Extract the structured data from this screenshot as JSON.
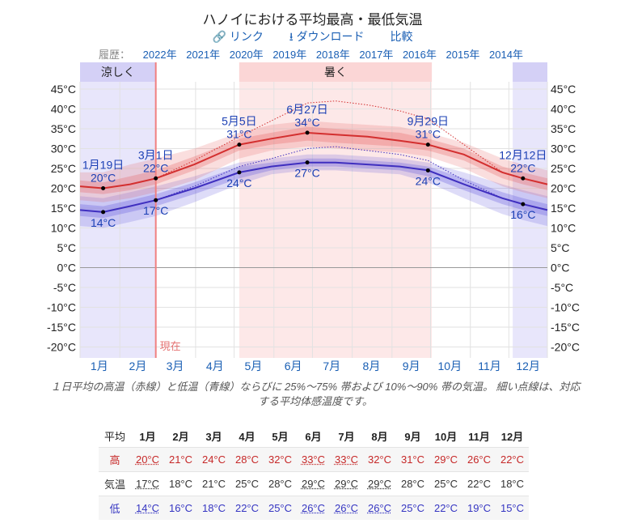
{
  "title": "ハノイにおける平均最高・最低気温",
  "links": {
    "link": "リンク",
    "download": "ダウンロード",
    "compare": "比較"
  },
  "history": {
    "label": "履歴：",
    "years": [
      "2022年",
      "2021年",
      "2020年",
      "2019年",
      "2018年",
      "2017年",
      "2016年",
      "2015年",
      "2014年"
    ]
  },
  "colors": {
    "high": "#d32f2f",
    "low": "#3f2fbf",
    "cool_band": "#e8e6fb",
    "hot_band": "#fde8e8",
    "now_line": "#f08080"
  },
  "chart_data": {
    "type": "line",
    "y_ticks": [
      "45°C",
      "40°C",
      "35°C",
      "30°C",
      "25°C",
      "20°C",
      "15°C",
      "10°C",
      "5°C",
      "0°C",
      "-5°C",
      "-10°C",
      "-15°C",
      "-20°C"
    ],
    "ylim": [
      -22,
      46
    ],
    "months": [
      "1月",
      "2月",
      "3月",
      "4月",
      "5月",
      "6月",
      "7月",
      "8月",
      "9月",
      "10月",
      "11月",
      "12月"
    ],
    "seasons": [
      {
        "name": "涼しく",
        "start_day": 1,
        "end_day": 60
      },
      {
        "name": "暑く",
        "start_day": 125,
        "end_day": 275
      },
      {
        "name": "",
        "start_day": 338,
        "end_day": 365
      }
    ],
    "now": {
      "label": "現在",
      "day": 60
    },
    "series": [
      {
        "name": "高",
        "days": [
          1,
          19,
          40,
          60,
          90,
          125,
          150,
          178,
          200,
          225,
          250,
          272,
          300,
          330,
          346,
          365
        ],
        "values": [
          20.5,
          20,
          21,
          22.5,
          26,
          31,
          32.5,
          34,
          33.5,
          33,
          32,
          31,
          28.5,
          24,
          22.5,
          21
        ],
        "p25": [
          19,
          18.5,
          19.5,
          21,
          24.5,
          29.5,
          31,
          32,
          31.5,
          31,
          30.5,
          29.5,
          27,
          22.5,
          21,
          19.5
        ],
        "p75": [
          22,
          21.5,
          23,
          24.5,
          28,
          32.5,
          34,
          35.5,
          35,
          34.5,
          34,
          32.5,
          30,
          25.5,
          24,
          22.5
        ],
        "p10": [
          17,
          16.5,
          17.5,
          19,
          22,
          27.5,
          29.5,
          30.5,
          30,
          29.5,
          29,
          28,
          25,
          20.5,
          19,
          17.5
        ],
        "p90": [
          24,
          24,
          26,
          27.5,
          30,
          34,
          36,
          37,
          36.5,
          36,
          35.5,
          34,
          31.5,
          27.5,
          26,
          24.5
        ],
        "feels": [
          20.5,
          20,
          21,
          22.5,
          27,
          33,
          37,
          41.5,
          42,
          41,
          39.5,
          37.5,
          31,
          24,
          22.5,
          21
        ]
      },
      {
        "name": "低",
        "days": [
          1,
          19,
          40,
          60,
          90,
          125,
          150,
          178,
          200,
          225,
          250,
          272,
          300,
          330,
          346,
          365
        ],
        "values": [
          14.5,
          14,
          15.5,
          17,
          20,
          24,
          25.5,
          26.5,
          26.5,
          26,
          25.5,
          24.5,
          21,
          17.5,
          16,
          14.5
        ],
        "p25": [
          13,
          12.5,
          14,
          15.5,
          18.5,
          22.5,
          24.5,
          25.5,
          25.5,
          25,
          24.5,
          23,
          19.5,
          16,
          14.5,
          13
        ],
        "p75": [
          16,
          15.5,
          17,
          18.5,
          21.5,
          25.5,
          26.5,
          27.5,
          27.5,
          27,
          26.5,
          25.5,
          22.5,
          19,
          17.5,
          16
        ],
        "p10": [
          10.5,
          10,
          11.5,
          13,
          16.5,
          21,
          23.5,
          24.5,
          24.5,
          24,
          23.5,
          21.5,
          17.5,
          13.5,
          12,
          10.5
        ],
        "p90": [
          18,
          17.5,
          19,
          20.5,
          23,
          26.5,
          27.5,
          28.5,
          28.5,
          28,
          27.5,
          26.5,
          24,
          21,
          19.5,
          18
        ],
        "feels": [
          14.5,
          14,
          15.5,
          17,
          20.5,
          25.5,
          27.5,
          30,
          30.5,
          29.5,
          28.5,
          27,
          22,
          17.5,
          16,
          14.5
        ]
      }
    ],
    "annotations": [
      {
        "day": 19,
        "date": "1月19日",
        "value": "20°C",
        "series": "high"
      },
      {
        "day": 19,
        "date": "",
        "value": "14°C",
        "series": "low"
      },
      {
        "day": 60,
        "date": "3月1日",
        "value": "22°C",
        "series": "high"
      },
      {
        "day": 60,
        "date": "",
        "value": "17°C",
        "series": "low"
      },
      {
        "day": 125,
        "date": "5月5日",
        "value": "31°C",
        "series": "high"
      },
      {
        "day": 125,
        "date": "",
        "value": "24°C",
        "series": "low"
      },
      {
        "day": 178,
        "date": "6月27日",
        "value": "34°C",
        "series": "high"
      },
      {
        "day": 178,
        "date": "",
        "value": "27°C",
        "series": "low"
      },
      {
        "day": 272,
        "date": "9月29日",
        "value": "31°C",
        "series": "high"
      },
      {
        "day": 272,
        "date": "",
        "value": "24°C",
        "series": "low"
      },
      {
        "day": 346,
        "date": "12月12日",
        "value": "22°C",
        "series": "high"
      },
      {
        "day": 346,
        "date": "",
        "value": "16°C",
        "series": "low"
      }
    ]
  },
  "caption": "１日平均の高温（赤線）と低温（青線）ならびに 25%〜75% 帯および 10%〜90% 帯の気温。 細い点線は、対応する平均体感温度です。",
  "table": {
    "header": [
      "平均",
      "1月",
      "2月",
      "3月",
      "4月",
      "5月",
      "6月",
      "7月",
      "8月",
      "9月",
      "10月",
      "11月",
      "12月"
    ],
    "rows": [
      {
        "label": "高",
        "values": [
          "20°C",
          "21°C",
          "24°C",
          "28°C",
          "32°C",
          "33°C",
          "33°C",
          "32°C",
          "31°C",
          "29°C",
          "26°C",
          "22°C"
        ]
      },
      {
        "label": "気温",
        "values": [
          "17°C",
          "18°C",
          "21°C",
          "25°C",
          "28°C",
          "29°C",
          "29°C",
          "29°C",
          "28°C",
          "25°C",
          "22°C",
          "18°C"
        ]
      },
      {
        "label": "低",
        "values": [
          "14°C",
          "16°C",
          "18°C",
          "22°C",
          "25°C",
          "26°C",
          "26°C",
          "26°C",
          "25°C",
          "22°C",
          "19°C",
          "15°C"
        ]
      }
    ]
  }
}
